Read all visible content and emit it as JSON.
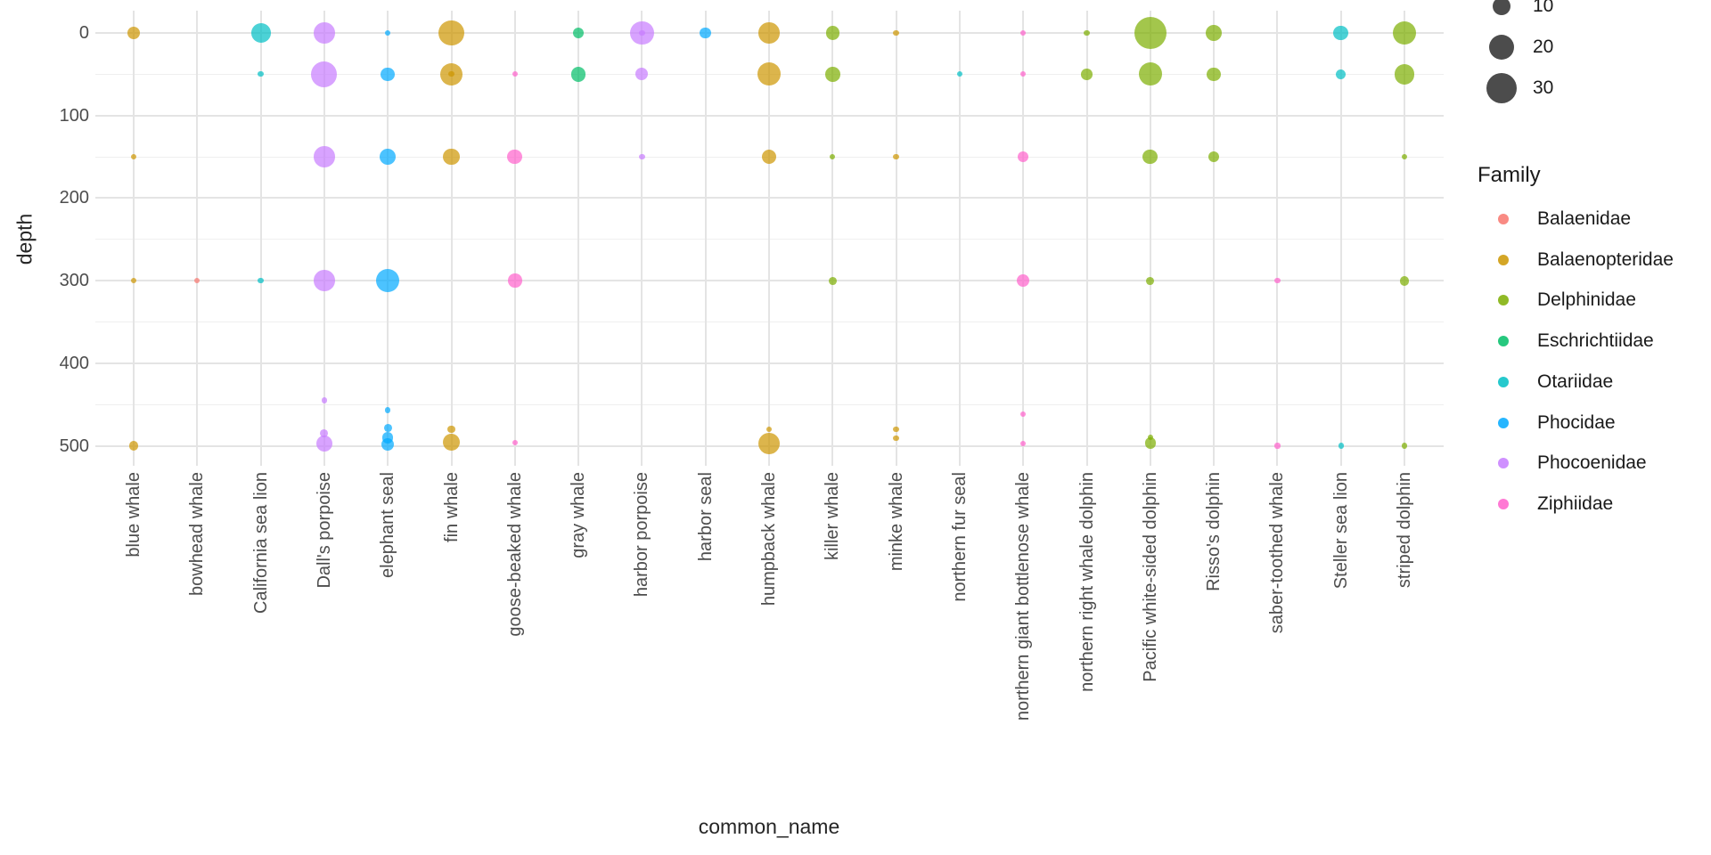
{
  "chart_data": {
    "type": "scatter",
    "title": "",
    "xlabel": "common_name",
    "ylabel": "depth",
    "y_ticks": [
      0,
      100,
      200,
      300,
      400,
      500
    ],
    "y_minor_ticks": [
      50,
      150,
      250,
      350,
      450
    ],
    "y_axis_reversed": true,
    "grid": "on",
    "x_categories": [
      "blue whale",
      "bowhead whale",
      "California sea lion",
      "Dall's porpoise",
      "elephant seal",
      "fin whale",
      "goose-beaked whale",
      "gray whale",
      "harbor porpoise",
      "harbor seal",
      "humpback whale",
      "killer whale",
      "minke whale",
      "northern fur seal",
      "northern giant bottlenose whale",
      "northern right whale dolphin",
      "Pacific white-sided dolphin",
      "Risso's dolphin",
      "saber-toothed whale",
      "Steller sea lion",
      "striped dolphin"
    ],
    "size_legend": {
      "values": [
        10,
        20,
        30
      ],
      "labels": [
        "10",
        "20",
        "30"
      ],
      "color": "#000000"
    },
    "family_legend": {
      "title": "Family",
      "entries": [
        {
          "name": "Balaenidae",
          "color": "#F8766D"
        },
        {
          "name": "Balaenopteridae",
          "color": "#CD9600"
        },
        {
          "name": "Delphinidae",
          "color": "#7CAE00"
        },
        {
          "name": "Eschrichtiidae",
          "color": "#00BE67"
        },
        {
          "name": "Otariidae",
          "color": "#00BFC4"
        },
        {
          "name": "Phocidae",
          "color": "#00A9FF"
        },
        {
          "name": "Phocoenidae",
          "color": "#C77CFF"
        },
        {
          "name": "Ziphiidae",
          "color": "#FF61CC"
        }
      ]
    },
    "points": [
      {
        "common_name": "blue whale",
        "family": "Balaenopteridae",
        "depth": 0,
        "n": 5
      },
      {
        "common_name": "blue whale",
        "family": "Balaenopteridae",
        "depth": 150,
        "n": 1
      },
      {
        "common_name": "blue whale",
        "family": "Balaenopteridae",
        "depth": 300,
        "n": 1
      },
      {
        "common_name": "blue whale",
        "family": "Balaenopteridae",
        "depth": 500,
        "n": 3
      },
      {
        "common_name": "bowhead whale",
        "family": "Balaenidae",
        "depth": 300,
        "n": 1
      },
      {
        "common_name": "California sea lion",
        "family": "Otariidae",
        "depth": 0,
        "n": 12
      },
      {
        "common_name": "California sea lion",
        "family": "Otariidae",
        "depth": 50,
        "n": 1
      },
      {
        "common_name": "California sea lion",
        "family": "Otariidae",
        "depth": 300,
        "n": 1
      },
      {
        "common_name": "Dall's porpoise",
        "family": "Phocoenidae",
        "depth": 0,
        "n": 14
      },
      {
        "common_name": "Dall's porpoise",
        "family": "Phocoenidae",
        "depth": 50,
        "n": 21
      },
      {
        "common_name": "Dall's porpoise",
        "family": "Phocoenidae",
        "depth": 150,
        "n": 14
      },
      {
        "common_name": "Dall's porpoise",
        "family": "Phocoenidae",
        "depth": 300,
        "n": 14
      },
      {
        "common_name": "Dall's porpoise",
        "family": "Phocoenidae",
        "depth": 445,
        "n": 1
      },
      {
        "common_name": "Dall's porpoise",
        "family": "Phocoenidae",
        "depth": 485,
        "n": 2
      },
      {
        "common_name": "Dall's porpoise",
        "family": "Phocoenidae",
        "depth": 497,
        "n": 8
      },
      {
        "common_name": "elephant seal",
        "family": "Phocidae",
        "depth": 0,
        "n": 1
      },
      {
        "common_name": "elephant seal",
        "family": "Phocidae",
        "depth": 50,
        "n": 6
      },
      {
        "common_name": "elephant seal",
        "family": "Phocidae",
        "depth": 150,
        "n": 8
      },
      {
        "common_name": "elephant seal",
        "family": "Phocidae",
        "depth": 300,
        "n": 17
      },
      {
        "common_name": "elephant seal",
        "family": "Phocidae",
        "depth": 457,
        "n": 1
      },
      {
        "common_name": "elephant seal",
        "family": "Phocidae",
        "depth": 478,
        "n": 2
      },
      {
        "common_name": "elephant seal",
        "family": "Phocidae",
        "depth": 490,
        "n": 4
      },
      {
        "common_name": "elephant seal",
        "family": "Phocidae",
        "depth": 498,
        "n": 5
      },
      {
        "common_name": "fin whale",
        "family": "Balaenopteridae",
        "depth": 0,
        "n": 20
      },
      {
        "common_name": "fin whale",
        "family": "Balaenopteridae",
        "depth": 50,
        "n": 16
      },
      {
        "common_name": "fin whale",
        "family": "Balaenopteridae",
        "depth": 50,
        "n": 1
      },
      {
        "common_name": "fin whale",
        "family": "Balaenopteridae",
        "depth": 150,
        "n": 9
      },
      {
        "common_name": "fin whale",
        "family": "Balaenopteridae",
        "depth": 480,
        "n": 2
      },
      {
        "common_name": "fin whale",
        "family": "Balaenopteridae",
        "depth": 496,
        "n": 9
      },
      {
        "common_name": "goose-beaked whale",
        "family": "Ziphiidae",
        "depth": 50,
        "n": 1
      },
      {
        "common_name": "goose-beaked whale",
        "family": "Ziphiidae",
        "depth": 150,
        "n": 7
      },
      {
        "common_name": "goose-beaked whale",
        "family": "Ziphiidae",
        "depth": 300,
        "n": 6
      },
      {
        "common_name": "goose-beaked whale",
        "family": "Ziphiidae",
        "depth": 496,
        "n": 1
      },
      {
        "common_name": "gray whale",
        "family": "Eschrichtiidae",
        "depth": 0,
        "n": 4
      },
      {
        "common_name": "gray whale",
        "family": "Eschrichtiidae",
        "depth": 50,
        "n": 7
      },
      {
        "common_name": "harbor porpoise",
        "family": "Phocoenidae",
        "depth": 0,
        "n": 18
      },
      {
        "common_name": "harbor porpoise",
        "family": "Phocoenidae",
        "depth": 0,
        "n": 1
      },
      {
        "common_name": "harbor porpoise",
        "family": "Phocoenidae",
        "depth": 50,
        "n": 5
      },
      {
        "common_name": "harbor porpoise",
        "family": "Phocoenidae",
        "depth": 150,
        "n": 1
      },
      {
        "common_name": "harbor seal",
        "family": "Phocidae",
        "depth": 0,
        "n": 4
      },
      {
        "common_name": "humpback whale",
        "family": "Balaenopteridae",
        "depth": 0,
        "n": 14
      },
      {
        "common_name": "humpback whale",
        "family": "Balaenopteridae",
        "depth": 50,
        "n": 17
      },
      {
        "common_name": "humpback whale",
        "family": "Balaenopteridae",
        "depth": 150,
        "n": 7
      },
      {
        "common_name": "humpback whale",
        "family": "Balaenopteridae",
        "depth": 480,
        "n": 1
      },
      {
        "common_name": "humpback whale",
        "family": "Balaenopteridae",
        "depth": 497,
        "n": 15
      },
      {
        "common_name": "killer whale",
        "family": "Delphinidae",
        "depth": 0,
        "n": 6
      },
      {
        "common_name": "killer whale",
        "family": "Delphinidae",
        "depth": 50,
        "n": 7
      },
      {
        "common_name": "killer whale",
        "family": "Delphinidae",
        "depth": 150,
        "n": 1
      },
      {
        "common_name": "killer whale",
        "family": "Delphinidae",
        "depth": 300,
        "n": 2
      },
      {
        "common_name": "minke whale",
        "family": "Balaenopteridae",
        "depth": 0,
        "n": 1
      },
      {
        "common_name": "minke whale",
        "family": "Balaenopteridae",
        "depth": 150,
        "n": 1
      },
      {
        "common_name": "minke whale",
        "family": "Balaenopteridae",
        "depth": 480,
        "n": 1
      },
      {
        "common_name": "minke whale",
        "family": "Balaenopteridae",
        "depth": 491,
        "n": 1
      },
      {
        "common_name": "northern fur seal",
        "family": "Otariidae",
        "depth": 50,
        "n": 1
      },
      {
        "common_name": "northern giant bottlenose whale",
        "family": "Ziphiidae",
        "depth": 0,
        "n": 1
      },
      {
        "common_name": "northern giant bottlenose whale",
        "family": "Ziphiidae",
        "depth": 50,
        "n": 1
      },
      {
        "common_name": "northern giant bottlenose whale",
        "family": "Ziphiidae",
        "depth": 150,
        "n": 4
      },
      {
        "common_name": "northern giant bottlenose whale",
        "family": "Ziphiidae",
        "depth": 300,
        "n": 5
      },
      {
        "common_name": "northern giant bottlenose whale",
        "family": "Ziphiidae",
        "depth": 462,
        "n": 1
      },
      {
        "common_name": "northern giant bottlenose whale",
        "family": "Ziphiidae",
        "depth": 497,
        "n": 1
      },
      {
        "common_name": "northern right whale dolphin",
        "family": "Delphinidae",
        "depth": 0,
        "n": 1
      },
      {
        "common_name": "northern right whale dolphin",
        "family": "Delphinidae",
        "depth": 50,
        "n": 4
      },
      {
        "common_name": "Pacific white-sided dolphin",
        "family": "Delphinidae",
        "depth": 0,
        "n": 33
      },
      {
        "common_name": "Pacific white-sided dolphin",
        "family": "Delphinidae",
        "depth": 50,
        "n": 17
      },
      {
        "common_name": "Pacific white-sided dolphin",
        "family": "Delphinidae",
        "depth": 150,
        "n": 7
      },
      {
        "common_name": "Pacific white-sided dolphin",
        "family": "Delphinidae",
        "depth": 300,
        "n": 2
      },
      {
        "common_name": "Pacific white-sided dolphin",
        "family": "Delphinidae",
        "depth": 490,
        "n": 1
      },
      {
        "common_name": "Pacific white-sided dolphin",
        "family": "Delphinidae",
        "depth": 497,
        "n": 4
      },
      {
        "common_name": "Risso's dolphin",
        "family": "Delphinidae",
        "depth": 0,
        "n": 8
      },
      {
        "common_name": "Risso's dolphin",
        "family": "Delphinidae",
        "depth": 50,
        "n": 6
      },
      {
        "common_name": "Risso's dolphin",
        "family": "Delphinidae",
        "depth": 150,
        "n": 4
      },
      {
        "common_name": "saber-toothed whale",
        "family": "Ziphiidae",
        "depth": 300,
        "n": 1
      },
      {
        "common_name": "saber-toothed whale",
        "family": "Ziphiidae",
        "depth": 500,
        "n": 1
      },
      {
        "common_name": "Steller sea lion",
        "family": "Otariidae",
        "depth": 0,
        "n": 7
      },
      {
        "common_name": "Steller sea lion",
        "family": "Otariidae",
        "depth": 50,
        "n": 3
      },
      {
        "common_name": "Steller sea lion",
        "family": "Otariidae",
        "depth": 500,
        "n": 1
      },
      {
        "common_name": "striped dolphin",
        "family": "Delphinidae",
        "depth": 0,
        "n": 17
      },
      {
        "common_name": "striped dolphin",
        "family": "Delphinidae",
        "depth": 50,
        "n": 13
      },
      {
        "common_name": "striped dolphin",
        "family": "Delphinidae",
        "depth": 150,
        "n": 1
      },
      {
        "common_name": "striped dolphin",
        "family": "Delphinidae",
        "depth": 300,
        "n": 3
      },
      {
        "common_name": "striped dolphin",
        "family": "Delphinidae",
        "depth": 500,
        "n": 1
      }
    ]
  }
}
